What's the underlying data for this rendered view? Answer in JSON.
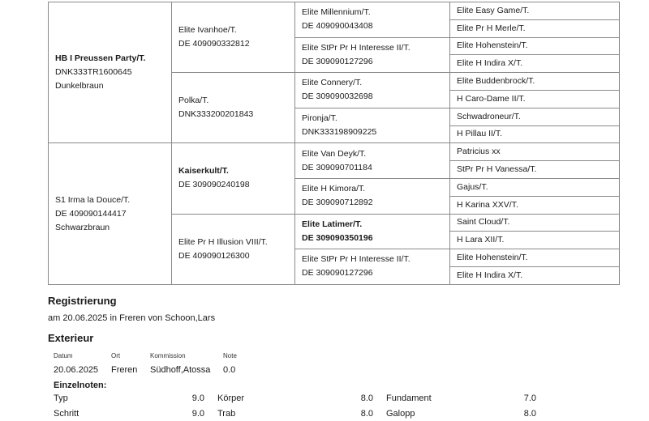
{
  "pedigree": {
    "sire": {
      "name": "HB I Preussen Party/T.",
      "id": "DNK333TR1600645",
      "color": "Dunkelbraun",
      "sire": {
        "name": "Elite Ivanhoe/T.",
        "id": "DE 409090332812",
        "sire": {
          "name": "Elite Millennium/T.",
          "id": "DE 409090043408",
          "parents": [
            "Elite Easy Game/T.",
            "Elite Pr H Merle/T."
          ]
        },
        "dam": {
          "name": "Elite StPr Pr H Interesse II/T.",
          "id": "DE 309090127296",
          "parents": [
            "Elite Hohenstein/T.",
            "Elite H Indira X/T."
          ]
        }
      },
      "dam": {
        "name": "Polka/T.",
        "id": "DNK333200201843",
        "sire": {
          "name": "Elite Connery/T.",
          "id": "DE 309090032698",
          "parents": [
            "Elite Buddenbrock/T.",
            "H Caro-Dame II/T."
          ]
        },
        "dam": {
          "name": "Pironja/T.",
          "id": "DNK333198909225",
          "parents": [
            "Schwadroneur/T.",
            "H Pillau II/T."
          ]
        }
      }
    },
    "dam": {
      "name": "S1 Irma la Douce/T.",
      "id": "DE 409090144417",
      "color": "Schwarzbraun",
      "sire": {
        "name": "Kaiserkult/T.",
        "id": "DE 309090240198",
        "sire": {
          "name": "Elite Van Deyk/T.",
          "id": "DE 309090701184",
          "parents": [
            "Patricius xx",
            "StPr Pr H Vanessa/T."
          ]
        },
        "dam": {
          "name": "Elite H Kimora/T.",
          "id": "DE 309090712892",
          "parents": [
            "Gajus/T.",
            "H Karina XXV/T."
          ]
        }
      },
      "dam": {
        "name": "Elite Pr H Illusion VIII/T.",
        "id": "DE 409090126300",
        "sire": {
          "name": "Elite Latimer/T.",
          "id": "DE 309090350196",
          "parents": [
            "Saint Cloud/T.",
            "H Lara XII/T."
          ]
        },
        "dam": {
          "name": "Elite StPr Pr H Interesse II/T.",
          "id": "DE 309090127296",
          "parents": [
            "Elite Hohenstein/T.",
            "Elite H Indira X/T."
          ]
        }
      }
    }
  },
  "registrierung": {
    "title": "Registrierung",
    "text": "am 20.06.2025 in Freren von Schoon,Lars"
  },
  "exterieur": {
    "title": "Exterieur",
    "headers": [
      "Datum",
      "Ort",
      "Kommission",
      "Note"
    ],
    "row": [
      "20.06.2025",
      "Freren",
      "Südhoff,Atossa",
      "0.0"
    ],
    "einzel_title": "Einzelnoten:",
    "scores": [
      [
        {
          "label": "Typ",
          "value": "9.0"
        },
        {
          "label": "Körper",
          "value": "8.0"
        },
        {
          "label": "Fundament",
          "value": "7.0"
        }
      ],
      [
        {
          "label": "Schritt",
          "value": "9.0"
        },
        {
          "label": "Trab",
          "value": "8.0"
        },
        {
          "label": "Galopp",
          "value": "8.0"
        }
      ]
    ]
  }
}
